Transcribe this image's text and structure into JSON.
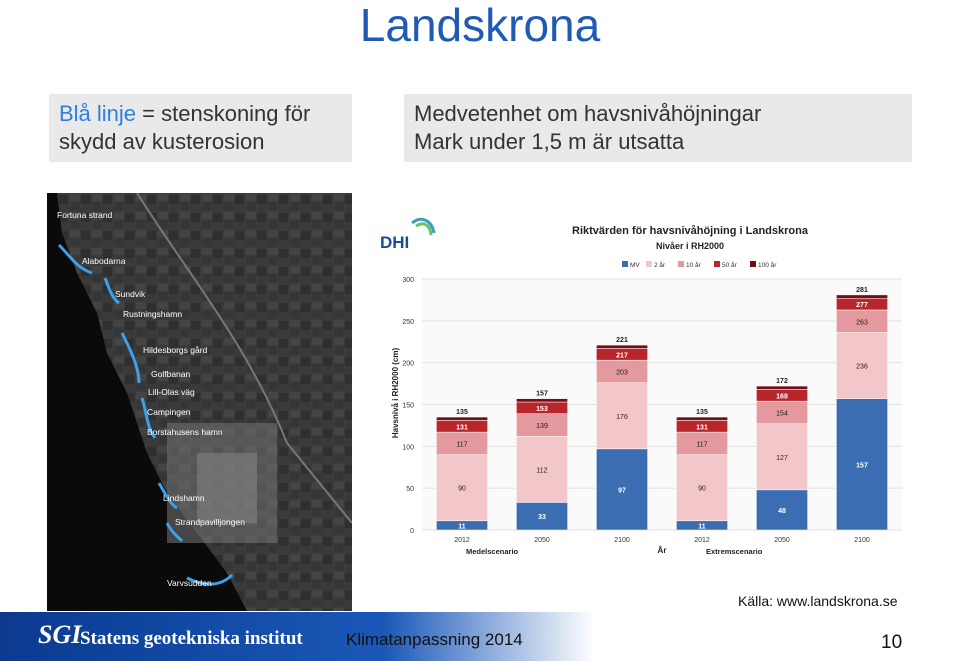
{
  "title": "Landskrona",
  "left_box": {
    "highlight": "Blå linje",
    "rest_line1": " = stenskoning för",
    "line2": "skydd av kusterosion"
  },
  "right_box": {
    "line1": "Medvetenhet om havsnivåhöjningar",
    "line2": "Mark under 1,5 m är utsatta"
  },
  "map_labels": [
    "Fortuna strand",
    "Alabodarna",
    "Sundvik",
    "Rustningshamn",
    "Hildesborgs gård",
    "Golfbanan",
    "Lill-Olas väg",
    "Campingen",
    "Borstahusens hamn",
    "Lindshamn",
    "Strandpavilljongen",
    "Varvsudden"
  ],
  "chart_logo": "DHI",
  "chart_data": {
    "type": "bar",
    "stacked": true,
    "title": "Riktvärden för havsnivåhöjning i Landskrona",
    "subtitle": "Nivåer i RH2000",
    "ylabel": "Havsnivå i RH2000 (cm)",
    "xlabel": "År",
    "ylim": [
      0,
      300
    ],
    "yticks": [
      0,
      50,
      100,
      150,
      200,
      250,
      300
    ],
    "categories": [
      "2012",
      "2050",
      "2100",
      "2012",
      "2050",
      "2100"
    ],
    "groups": [
      "Medelscenario",
      "Extremscenario"
    ],
    "legend": [
      "MV",
      "2 år",
      "10 år",
      "50 år",
      "100 år"
    ],
    "colors": [
      "#3b6db3",
      "#f3c7c9",
      "#e3999d",
      "#b8262c",
      "#6e1015"
    ],
    "cumulative_labels": [
      [
        11,
        90,
        117,
        131,
        135
      ],
      [
        33,
        112,
        139,
        153,
        157
      ],
      [
        97,
        176,
        203,
        217,
        221
      ],
      [
        11,
        90,
        117,
        131,
        135
      ],
      [
        48,
        127,
        154,
        168,
        172
      ],
      [
        157,
        236,
        263,
        277,
        281
      ]
    ]
  },
  "source": "Källa: www.landskrona.se",
  "footer": {
    "logo": "SGI",
    "org": "Statens geotekniska institut",
    "center": "Klimatanpassning 2014",
    "page": "10"
  }
}
